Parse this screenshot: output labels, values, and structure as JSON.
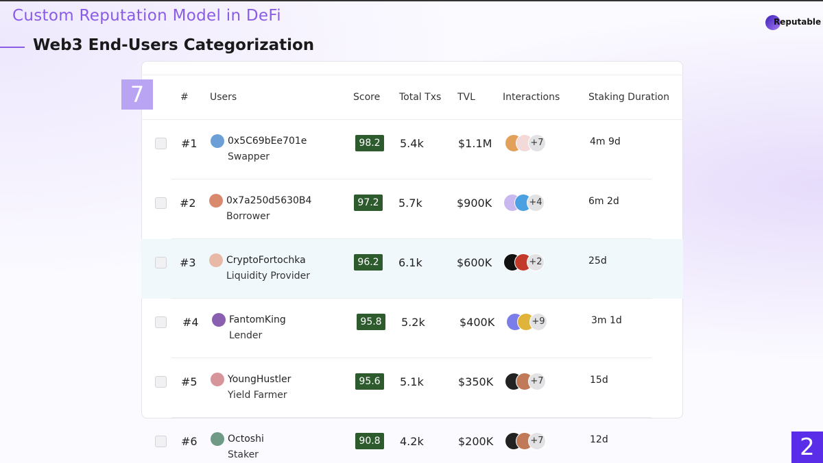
{
  "header": {
    "title": "Custom Reputation Model in DeFi",
    "subtitle": "Web3 End-Users Categorization",
    "brand": "Reputable"
  },
  "badge": "7",
  "page_number": "2",
  "table": {
    "columns": [
      "#",
      "Users",
      "Score",
      "Total Txs",
      "TVL",
      "Interactions",
      "Staking Duration"
    ],
    "rows": [
      {
        "rank": "#1",
        "user": "0x5C69bEe701e",
        "role": "Swapper",
        "score": "98.2",
        "txs": "5.4k",
        "tvl": "$1.1M",
        "more": "+7",
        "duration": "4m 9d"
      },
      {
        "rank": "#2",
        "user": "0x7a250d5630B4",
        "role": "Borrower",
        "score": "97.2",
        "txs": "5.7k",
        "tvl": "$900K",
        "more": "+4",
        "duration": "6m 2d"
      },
      {
        "rank": "#3",
        "user": "CryptoFortochka",
        "role": "Liquidity Provider",
        "score": "96.2",
        "txs": "6.1k",
        "tvl": "$600K",
        "more": "+2",
        "duration": "25d"
      },
      {
        "rank": "#4",
        "user": "FantomKing",
        "role": "Lender",
        "score": "95.8",
        "txs": "5.2k",
        "tvl": "$400K",
        "more": "+9",
        "duration": "3m 1d"
      },
      {
        "rank": "#5",
        "user": "YoungHustler",
        "role": "Yield Farmer",
        "score": "95.6",
        "txs": "5.1k",
        "tvl": "$350K",
        "more": "+7",
        "duration": "15d"
      },
      {
        "rank": "#6",
        "user": "Octoshi",
        "role": "Staker",
        "score": "90.8",
        "txs": "4.2k",
        "tvl": "$200K",
        "more": "+7",
        "duration": "12d"
      }
    ]
  }
}
